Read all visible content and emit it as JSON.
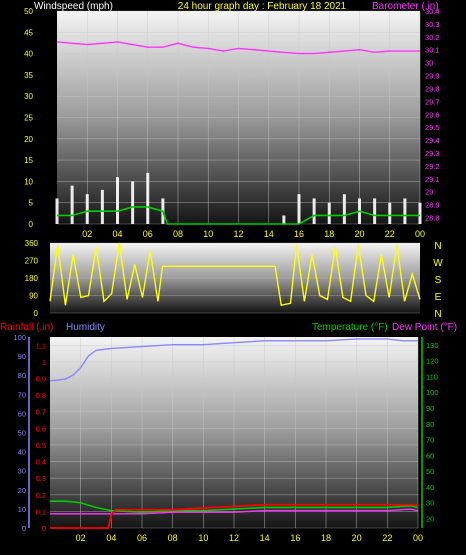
{
  "header": {
    "wind_label": "Windspeed (mph)",
    "title": "24 hour graph day : February 18 2021",
    "baro_label": "Barometer (.in)"
  },
  "bottom_header": {
    "rain_label": "Rainfall (.in)",
    "humidity_label": "Humidity",
    "temp_label": "Temperature (°F)",
    "dew_label": "Dew Point (°F)"
  },
  "colors": {
    "wind": "#ffffff",
    "wind_avg": "#00cc00",
    "barometer": "#ff33ff",
    "direction": "#ffff00",
    "humidity": "#8888ff",
    "temperature": "#00cc00",
    "dew_point": "#ff33ff",
    "rainfall": "#ff0000",
    "title": "#ffff00",
    "ticks": "#ffff00"
  },
  "chart_data": [
    {
      "type": "bar",
      "name": "wind_and_barometer",
      "x_ticks": [
        "02",
        "04",
        "06",
        "08",
        "10",
        "12",
        "14",
        "16",
        "18",
        "20",
        "22",
        "00"
      ],
      "left_axis": {
        "ticks": [
          0,
          5,
          10,
          15,
          20,
          25,
          30,
          35,
          40,
          45,
          50
        ],
        "ylim": [
          0,
          50
        ]
      },
      "right_axis": {
        "ticks": [
          28.8,
          28.9,
          29,
          29.1,
          29.2,
          29.3,
          29.4,
          29.5,
          29.6,
          29.7,
          29.8,
          29.9,
          30,
          30.1,
          30.2,
          30.3,
          30.4
        ],
        "ylim": [
          28.75,
          30.4
        ]
      },
      "series": [
        {
          "name": "Windspeed",
          "axis": "left",
          "x": [
            0,
            1,
            2,
            3,
            4,
            5,
            6,
            7,
            7.3,
            8,
            10,
            12,
            14,
            15,
            16,
            17,
            18,
            19,
            20,
            21,
            22,
            23,
            24
          ],
          "values": [
            6,
            9,
            7,
            8,
            11,
            10,
            12,
            6,
            0,
            0,
            0,
            0,
            0,
            2,
            7,
            6,
            5,
            7,
            6,
            6,
            5,
            6,
            5
          ]
        },
        {
          "name": "Wind average",
          "axis": "left",
          "x": [
            0,
            1,
            2,
            3,
            4,
            5,
            6,
            7,
            7.3,
            8,
            16,
            17,
            18,
            19,
            20,
            21,
            22,
            23,
            24
          ],
          "values": [
            2,
            2,
            3,
            3,
            3,
            4,
            4,
            3,
            0,
            0,
            0,
            2,
            2,
            2,
            3,
            2,
            2,
            2,
            2
          ]
        },
        {
          "name": "Barometer",
          "axis": "right",
          "x": [
            0,
            1,
            2,
            3,
            4,
            5,
            6,
            7,
            8,
            9,
            10,
            11,
            12,
            13,
            14,
            15,
            16,
            17,
            18,
            19,
            20,
            21,
            22,
            23,
            24
          ],
          "values": [
            30.16,
            30.15,
            30.14,
            30.15,
            30.16,
            30.14,
            30.12,
            30.12,
            30.15,
            30.12,
            30.11,
            30.09,
            30.11,
            30.1,
            30.09,
            30.08,
            30.07,
            30.07,
            30.08,
            30.09,
            30.1,
            30.08,
            30.09,
            30.09,
            30.09
          ]
        }
      ]
    },
    {
      "type": "scatter",
      "name": "wind_direction",
      "x_ticks": [
        "02",
        "04",
        "06",
        "08",
        "10",
        "12",
        "14",
        "16",
        "18",
        "20",
        "22",
        "00"
      ],
      "left_axis": {
        "ticks": [
          0,
          90,
          180,
          270,
          360
        ],
        "ylim": [
          0,
          360
        ]
      },
      "right_labels": [
        "N",
        "W",
        "S",
        "E",
        "N"
      ],
      "series": [
        {
          "name": "Wind direction",
          "x": [
            0,
            0.5,
            1,
            1.5,
            2,
            2.5,
            3,
            3.5,
            4,
            4.5,
            5,
            5.5,
            6,
            6.5,
            7,
            7.3,
            8,
            9,
            10,
            11,
            12,
            13,
            14,
            14.6,
            15,
            15.6,
            16,
            16.5,
            17,
            17.5,
            18,
            18.5,
            19,
            19.5,
            20,
            20.5,
            21,
            21.5,
            22,
            22.5,
            23,
            23.5,
            24
          ],
          "values": [
            60,
            350,
            40,
            300,
            80,
            90,
            340,
            60,
            100,
            360,
            70,
            250,
            80,
            320,
            60,
            240,
            240,
            240,
            240,
            240,
            240,
            240,
            240,
            240,
            40,
            50,
            350,
            60,
            300,
            90,
            70,
            340,
            80,
            60,
            350,
            90,
            60,
            300,
            80,
            350,
            60,
            200,
            70
          ]
        }
      ]
    },
    {
      "type": "line",
      "name": "rain_humidity_temperature",
      "x_ticks": [
        "02",
        "04",
        "06",
        "08",
        "10",
        "12",
        "14",
        "16",
        "18",
        "20",
        "22",
        "00"
      ],
      "left_axis": {
        "ticks": [
          0,
          10,
          20,
          30,
          40,
          50,
          60,
          70,
          80,
          90,
          100
        ],
        "ylim": [
          0,
          100
        ]
      },
      "rain_axis": {
        "ticks": [
          0,
          0.1,
          0.2,
          0.3,
          0.4,
          0.5,
          0.6,
          0.7,
          0.8,
          0.9,
          1,
          1.1
        ],
        "ylim": [
          0,
          1.15
        ]
      },
      "right_axis": {
        "ticks": [
          20,
          30,
          40,
          50,
          60,
          70,
          80,
          90,
          100,
          110,
          120,
          130
        ],
        "ylim": [
          14,
          135
        ]
      },
      "series": [
        {
          "name": "Humidity",
          "axis": "left",
          "x": [
            0,
            1,
            1.5,
            2,
            2.5,
            3,
            4,
            6,
            8,
            10,
            12,
            14,
            16,
            18,
            20,
            22,
            23,
            24
          ],
          "values": [
            77,
            78,
            80,
            84,
            90,
            93,
            94,
            95,
            96,
            96,
            97,
            98,
            98,
            98,
            99,
            99,
            98,
            98
          ]
        },
        {
          "name": "Temperature",
          "axis": "right",
          "x": [
            0,
            1,
            2,
            3,
            4,
            6,
            8,
            10,
            12,
            14,
            16,
            18,
            20,
            22,
            23.5,
            24
          ],
          "values": [
            31,
            31,
            30,
            27,
            25,
            24,
            25,
            25,
            26,
            27,
            27,
            27,
            27,
            27,
            28,
            27
          ]
        },
        {
          "name": "Dew Point",
          "axis": "right",
          "x": [
            0,
            1,
            2,
            3,
            4,
            6,
            8,
            10,
            12,
            14,
            16,
            18,
            20,
            22,
            23.5,
            24
          ],
          "values": [
            23,
            23,
            23,
            23,
            23,
            23,
            24,
            24,
            24,
            25,
            25,
            25,
            25,
            25,
            26,
            25
          ]
        },
        {
          "name": "Rainfall",
          "axis": "rain",
          "x": [
            0,
            3.8,
            4.0,
            4.3,
            8,
            10,
            12,
            14,
            16,
            18,
            20,
            22,
            23.5,
            24
          ],
          "values": [
            0,
            0,
            0.08,
            0.11,
            0.11,
            0.12,
            0.13,
            0.14,
            0.14,
            0.14,
            0.14,
            0.14,
            0.14,
            0.14
          ]
        }
      ]
    }
  ]
}
